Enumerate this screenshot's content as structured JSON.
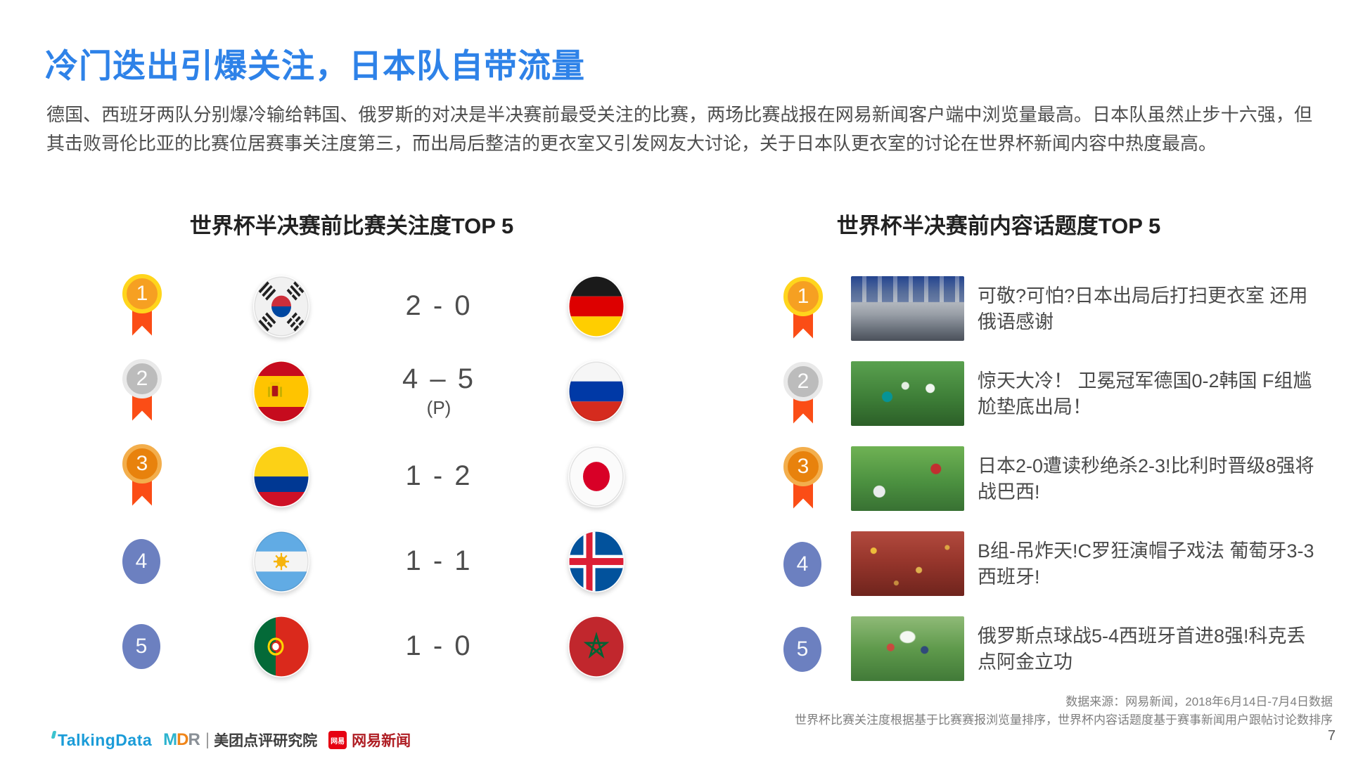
{
  "page": {
    "title": "冷门迭出引爆关注，日本队自带流量",
    "paragraph": "德国、西班牙两队分别爆冷输给韩国、俄罗斯的对决是半决赛前最受关注的比赛，两场比赛战报在网易新闻客户端中浏览量最高。日本队虽然止步十六强，但其击败哥伦比亚的比赛位居赛事关注度第三，而出局后整洁的更衣室又引发网友大讨论，关于日本队更衣室的讨论在世界杯新闻内容中热度最高。",
    "page_number": "7"
  },
  "colors": {
    "title_blue": "#2E82E8",
    "medal_ribbon": "#FB4D16",
    "rank_plain_blue": "#6C80C0",
    "gold": "#FFD51C",
    "silver": "#E9E9E9",
    "bronze": "#F3AE4C"
  },
  "match_ranking": {
    "title": "世界杯半决赛前比赛关注度TOP 5",
    "rows": [
      {
        "rank": "1",
        "rank_style": "gold",
        "team1": "south-korea",
        "score": "2 - 0",
        "score_note": "",
        "team2": "germany"
      },
      {
        "rank": "2",
        "rank_style": "silver",
        "team1": "spain",
        "score": "4 – 5",
        "score_note": "(P)",
        "team2": "russia"
      },
      {
        "rank": "3",
        "rank_style": "bronze",
        "team1": "colombia",
        "score": "1 - 2",
        "score_note": "",
        "team2": "japan"
      },
      {
        "rank": "4",
        "rank_style": "plain",
        "team1": "argentina",
        "score": "1 - 1",
        "score_note": "",
        "team2": "iceland"
      },
      {
        "rank": "5",
        "rank_style": "plain",
        "team1": "portugal",
        "score": "1 - 0",
        "score_note": "",
        "team2": "morocco"
      }
    ]
  },
  "topic_ranking": {
    "title": "世界杯半决赛前内容话题度TOP 5",
    "rows": [
      {
        "rank": "1",
        "rank_style": "gold",
        "photo": "locker-room",
        "headline": "可敬?可怕?日本出局后打扫更衣室 还用俄语感谢"
      },
      {
        "rank": "2",
        "rank_style": "silver",
        "photo": "germany-korea-match",
        "headline": "惊天大冷！ 卫冕冠军德国0-2韩国 F组尴尬垫底出局！"
      },
      {
        "rank": "3",
        "rank_style": "bronze",
        "photo": "japan-belgium-match",
        "headline": "日本2-0遭读秒绝杀2-3!比利时晋级8强将战巴西!"
      },
      {
        "rank": "4",
        "rank_style": "plain",
        "photo": "portugal-spain-fans",
        "headline": "B组-吊炸天!C罗狂演帽子戏法 葡萄牙3-3西班牙!"
      },
      {
        "rank": "5",
        "rank_style": "plain",
        "photo": "russia-spain-match",
        "headline": "俄罗斯点球战5-4西班牙首进8强!科克丢点阿金立功"
      }
    ]
  },
  "footer": {
    "source_line1": "数据来源：网易新闻，2018年6月14日-7月4日数据",
    "source_line2": "世界杯比赛关注度根据基于比赛赛报浏览量排序，世界杯内容话题度基于赛事新闻用户跟帖讨论数排序",
    "logos": {
      "talkingdata": "TalkingData",
      "mdr_m": "M",
      "mdr_d": "D",
      "mdr_r": "R",
      "divider": "|",
      "meituan": "美团点评研究院",
      "netease_badge": "网易",
      "netease": "网易新闻"
    }
  }
}
